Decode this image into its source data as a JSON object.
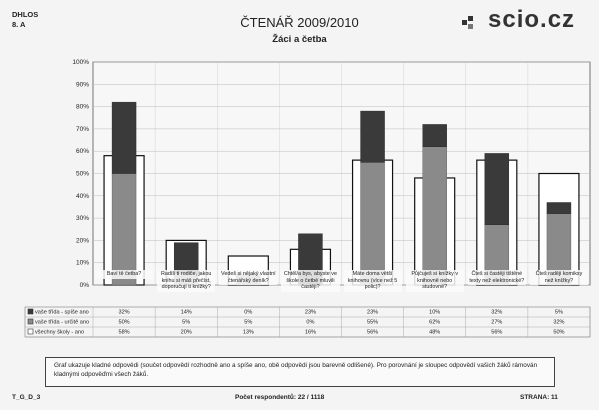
{
  "header": {
    "school_code": "DHLOS",
    "class": "8. A",
    "title": "ČTENÁŘ 2009/2010",
    "subtitle": "Žáci a četba",
    "logo": "scio.cz"
  },
  "chart_data": {
    "type": "bar",
    "ylim": [
      0,
      100
    ],
    "yticks": [
      "0%",
      "10%",
      "20%",
      "30%",
      "40%",
      "50%",
      "60%",
      "70%",
      "80%",
      "90%",
      "100%"
    ],
    "categories": [
      "Baví tě četba?",
      "Radíš ti rodiče, jakou knihu si máš přečíst, doporučují ti knížky?",
      "Vedeš si nějaký vlastní čtenářský deník?",
      "Chtěl/a bys, abyste ve škole o četbě mluvili častěji?",
      "Máte doma větší knihovnu (více než 5 polic)?",
      "Půjčuješ si knížky v knihovně nebo studovně?",
      "Čteš si častěji tištěné texty než elektronické?",
      "Čteš raději komiksy než knížky?"
    ],
    "series": [
      {
        "name": "vaše třída - spíše ano",
        "values": [
          32,
          14,
          0,
          23,
          23,
          10,
          32,
          5
        ],
        "labels": [
          "32%",
          "14%",
          "0%",
          "23%",
          "23%",
          "10%",
          "32%",
          "5%"
        ],
        "color": "#3a3a3a"
      },
      {
        "name": "vaše třída - určitě ano",
        "values": [
          50,
          5,
          5,
          0,
          55,
          62,
          27,
          32
        ],
        "labels": [
          "50%",
          "5%",
          "5%",
          "0%",
          "55%",
          "62%",
          "27%",
          "32%"
        ],
        "color": "#8a8a8a"
      },
      {
        "name": "všechny školy - ano",
        "values": [
          58,
          20,
          13,
          16,
          56,
          48,
          56,
          50
        ],
        "labels": [
          "58%",
          "20%",
          "13%",
          "16%",
          "56%",
          "48%",
          "56%",
          "50%"
        ],
        "color": "#ffffff"
      }
    ]
  },
  "note": "Graf ukazuje kladné odpovědi (součet odpovědí rozhodně ano a spíše ano, obě odpovědi jsou barevně odlišené). Pro porovnání je sloupec odpovědí vašich žáků rámován kladnými odpověďmi všech žáků.",
  "footer": {
    "code": "T_G_D_3",
    "respondents": "Počet respondentů: 22 / 1118",
    "page": "STRANA: 11"
  }
}
